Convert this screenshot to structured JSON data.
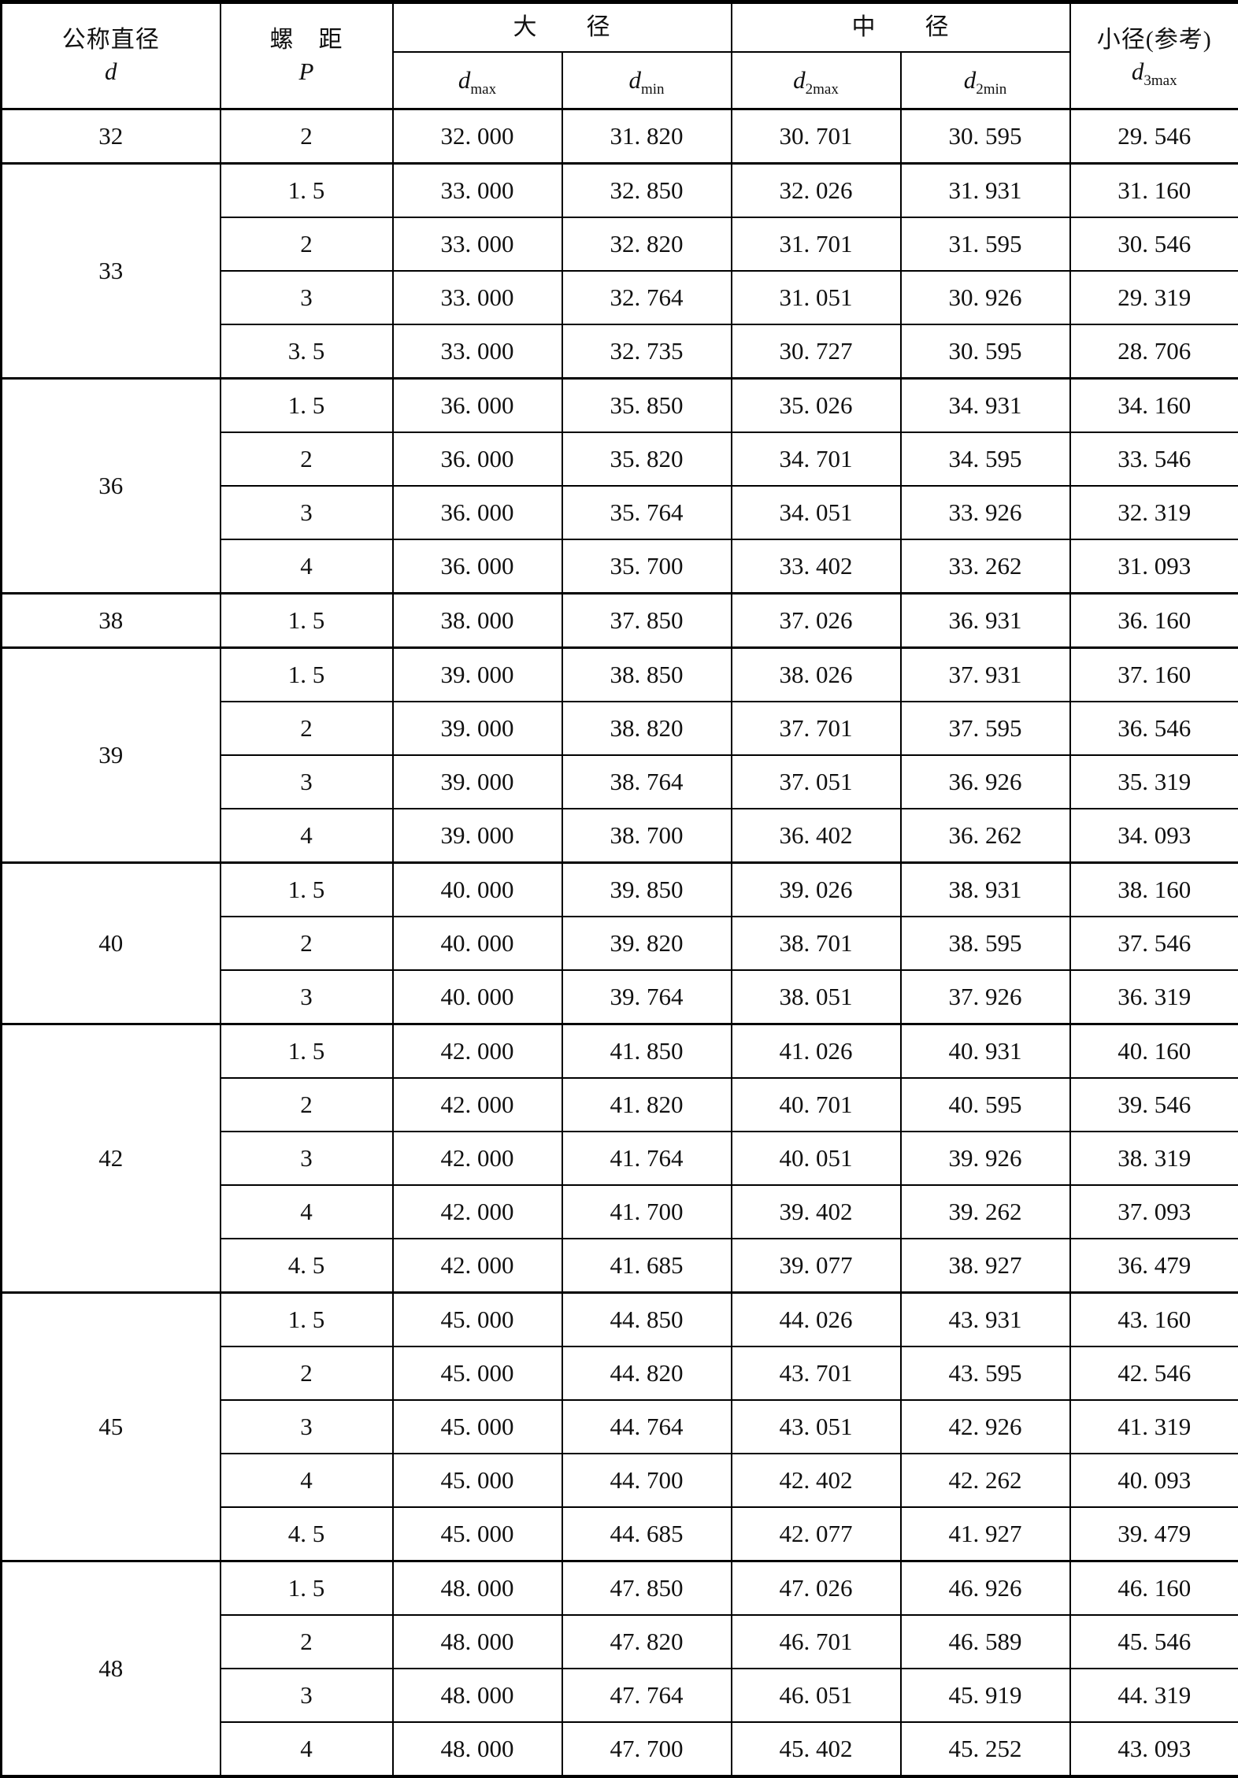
{
  "page": {
    "background": "#ffffff",
    "line_color": "#000000",
    "text_color": "#111111"
  },
  "table": {
    "header": {
      "col1": {
        "line1": "公称直径",
        "line2": "d"
      },
      "col2": {
        "line1": "螺　距",
        "line2": "P"
      },
      "major": {
        "label": "大　　径",
        "sub": [
          {
            "base": "d",
            "subscript": "max"
          },
          {
            "base": "d",
            "subscript": "min"
          }
        ]
      },
      "middle": {
        "label": "中　　径",
        "sub": [
          {
            "base": "d",
            "subscript": "2max"
          },
          {
            "base": "d",
            "subscript": "2min"
          }
        ]
      },
      "minor": {
        "label": "小径(参考)",
        "base": "d",
        "subscript": "3max"
      }
    },
    "groups": [
      {
        "d": "32",
        "rows": [
          [
            "2",
            "32.000",
            "31.820",
            "30.701",
            "30.595",
            "29.546"
          ]
        ]
      },
      {
        "d": "33",
        "rows": [
          [
            "1.5",
            "33.000",
            "32.850",
            "32.026",
            "31.931",
            "31.160"
          ],
          [
            "2",
            "33.000",
            "32.820",
            "31.701",
            "31.595",
            "30.546"
          ],
          [
            "3",
            "33.000",
            "32.764",
            "31.051",
            "30.926",
            "29.319"
          ],
          [
            "3.5",
            "33.000",
            "32.735",
            "30.727",
            "30.595",
            "28.706"
          ]
        ]
      },
      {
        "d": "36",
        "rows": [
          [
            "1.5",
            "36.000",
            "35.850",
            "35.026",
            "34.931",
            "34.160"
          ],
          [
            "2",
            "36.000",
            "35.820",
            "34.701",
            "34.595",
            "33.546"
          ],
          [
            "3",
            "36.000",
            "35.764",
            "34.051",
            "33.926",
            "32.319"
          ],
          [
            "4",
            "36.000",
            "35.700",
            "33.402",
            "33.262",
            "31.093"
          ]
        ]
      },
      {
        "d": "38",
        "rows": [
          [
            "1.5",
            "38.000",
            "37.850",
            "37.026",
            "36.931",
            "36.160"
          ]
        ]
      },
      {
        "d": "39",
        "rows": [
          [
            "1.5",
            "39.000",
            "38.850",
            "38.026",
            "37.931",
            "37.160"
          ],
          [
            "2",
            "39.000",
            "38.820",
            "37.701",
            "37.595",
            "36.546"
          ],
          [
            "3",
            "39.000",
            "38.764",
            "37.051",
            "36.926",
            "35.319"
          ],
          [
            "4",
            "39.000",
            "38.700",
            "36.402",
            "36.262",
            "34.093"
          ]
        ]
      },
      {
        "d": "40",
        "rows": [
          [
            "1.5",
            "40.000",
            "39.850",
            "39.026",
            "38.931",
            "38.160"
          ],
          [
            "2",
            "40.000",
            "39.820",
            "38.701",
            "38.595",
            "37.546"
          ],
          [
            "3",
            "40.000",
            "39.764",
            "38.051",
            "37.926",
            "36.319"
          ]
        ]
      },
      {
        "d": "42",
        "rows": [
          [
            "1.5",
            "42.000",
            "41.850",
            "41.026",
            "40.931",
            "40.160"
          ],
          [
            "2",
            "42.000",
            "41.820",
            "40.701",
            "40.595",
            "39.546"
          ],
          [
            "3",
            "42.000",
            "41.764",
            "40.051",
            "39.926",
            "38.319"
          ],
          [
            "4",
            "42.000",
            "41.700",
            "39.402",
            "39.262",
            "37.093"
          ],
          [
            "4.5",
            "42.000",
            "41.685",
            "39.077",
            "38.927",
            "36.479"
          ]
        ]
      },
      {
        "d": "45",
        "rows": [
          [
            "1.5",
            "45.000",
            "44.850",
            "44.026",
            "43.931",
            "43.160"
          ],
          [
            "2",
            "45.000",
            "44.820",
            "43.701",
            "43.595",
            "42.546"
          ],
          [
            "3",
            "45.000",
            "44.764",
            "43.051",
            "42.926",
            "41.319"
          ],
          [
            "4",
            "45.000",
            "44.700",
            "42.402",
            "42.262",
            "40.093"
          ],
          [
            "4.5",
            "45.000",
            "44.685",
            "42.077",
            "41.927",
            "39.479"
          ]
        ]
      },
      {
        "d": "48",
        "rows": [
          [
            "1.5",
            "48.000",
            "47.850",
            "47.026",
            "46.926",
            "46.160"
          ],
          [
            "2",
            "48.000",
            "47.820",
            "46.701",
            "46.589",
            "45.546"
          ],
          [
            "3",
            "48.000",
            "47.764",
            "46.051",
            "45.919",
            "44.319"
          ],
          [
            "4",
            "48.000",
            "47.700",
            "45.402",
            "45.252",
            "43.093"
          ]
        ]
      }
    ]
  }
}
